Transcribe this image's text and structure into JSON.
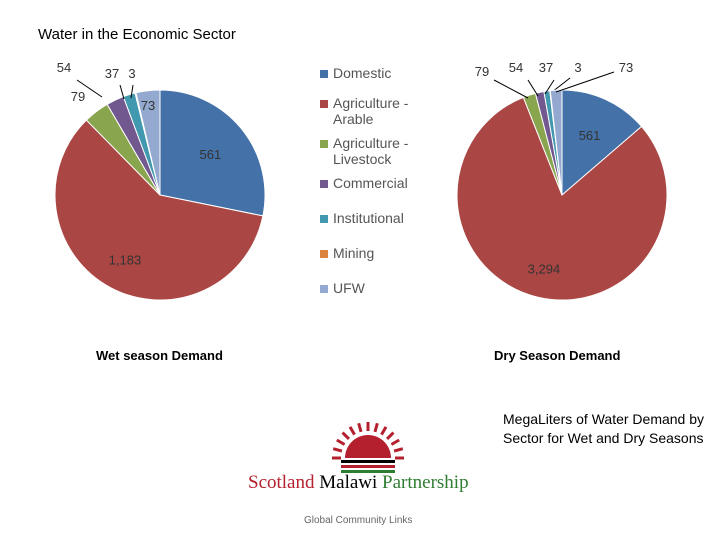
{
  "page_title": "Water in the Economic Sector",
  "note": "MegaLiters of Water Demand by Sector for Wet and Dry Seasons",
  "logo": {
    "scotland": "Scotland",
    "malawi": "Malawi",
    "partnership": "Partnership"
  },
  "footer": "Global Community Links",
  "colors": {
    "Domestic": "#4472a8",
    "Agriculture - Arable": "#aa4643",
    "Agriculture - Livestock": "#89a54e",
    "Commercial": "#71588f",
    "Institutional": "#4198af",
    "Mining": "#db843d",
    "UFW": "#93a9cf",
    "logo_red": "#b5202e",
    "logo_green": "#2f7d32"
  },
  "chart_data": [
    {
      "type": "pie",
      "title": "Wet season Demand",
      "categories": [
        "Domestic",
        "Agriculture - Arable",
        "Agriculture - Livestock",
        "Commercial",
        "Institutional",
        "Mining",
        "UFW"
      ],
      "values": [
        561,
        1183,
        79,
        54,
        37,
        3,
        73
      ],
      "labels": [
        "561",
        "1,183",
        "79",
        "54",
        "37",
        "3",
        "73"
      ],
      "legend": "right"
    },
    {
      "type": "pie",
      "title": "Dry Season Demand",
      "categories": [
        "Domestic",
        "Agriculture - Arable",
        "Agriculture - Livestock",
        "Commercial",
        "Institutional",
        "Mining",
        "UFW"
      ],
      "values": [
        561,
        3294,
        79,
        54,
        37,
        3,
        73
      ],
      "labels": [
        "561",
        "3,294",
        "79",
        "54",
        "37",
        "3",
        "73"
      ],
      "legend": "left"
    }
  ]
}
